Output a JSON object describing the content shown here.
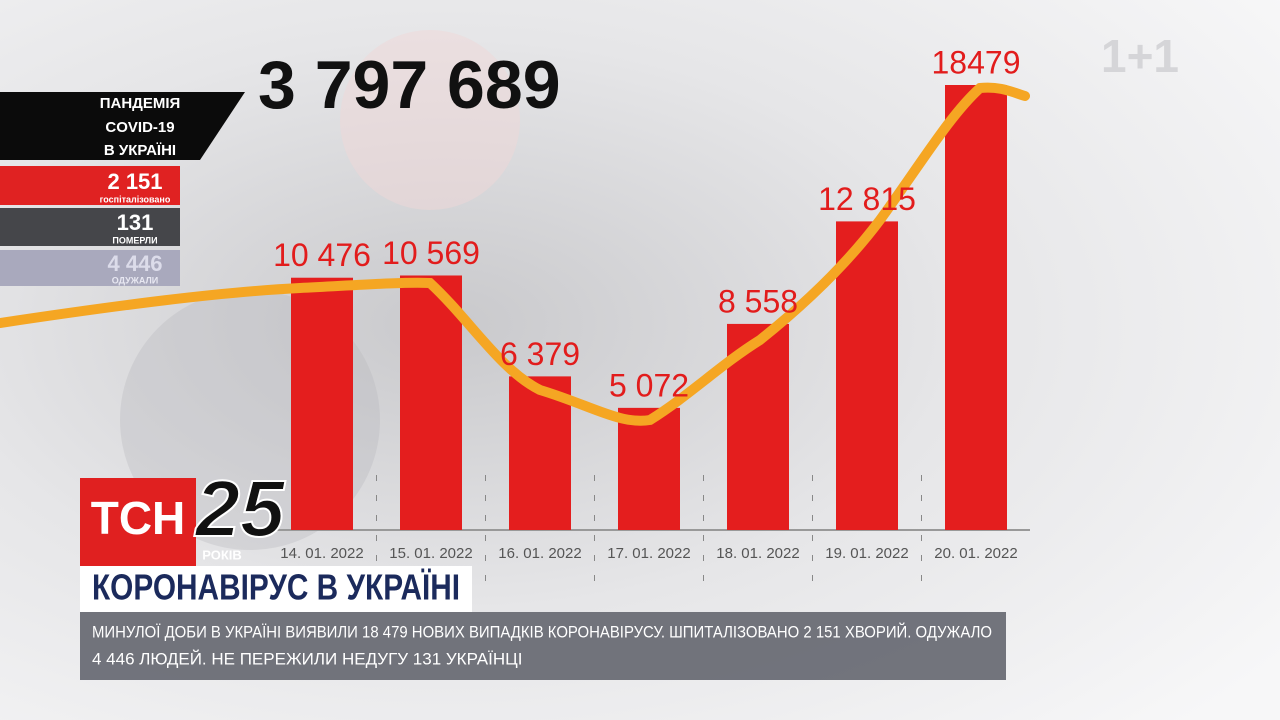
{
  "chart_data": {
    "type": "bar",
    "categories": [
      "14. 01. 2022",
      "15. 01. 2022",
      "16. 01. 2022",
      "17. 01. 2022",
      "18. 01. 2022",
      "19. 01. 2022",
      "20. 01. 2022"
    ],
    "values": [
      10476,
      10569,
      6379,
      5072,
      8558,
      12815,
      18479
    ],
    "value_labels": [
      "10 476",
      "10 569",
      "6 379",
      "5 072",
      "8 558",
      "12 815",
      "18479"
    ],
    "color": "#e41e1e"
  },
  "total_cases": "3 797 689",
  "stats_panel": {
    "title_lines": [
      "ПАНДЕМІЯ",
      "COVID-19",
      "В УКРАЇНІ"
    ],
    "items": [
      {
        "value": "2 151",
        "label": "госпіталізовано"
      },
      {
        "value": "131",
        "label": "ПОМЕРЛИ"
      },
      {
        "value": "4 446",
        "label": "ОДУЖАЛИ"
      }
    ]
  },
  "channel_logo": "1+1",
  "news_logo": {
    "name": "ТСН",
    "anniversary": "25",
    "anniversary_label": "РОКІВ"
  },
  "headline": "КОРОНАВІРУС В УКРАЇНІ",
  "ticker_lines": [
    "МИНУЛОЇ ДОБИ В УКРАЇНІ ВИЯВИЛИ 18 479 НОВИХ ВИПАДКІВ КОРОНАВІРУСУ. ШПИТАЛІЗОВАНО 2 151 ХВОРИЙ. ОДУЖАЛО",
    "4 446 ЛЮДЕЙ. НЕ ПЕРЕЖИЛИ НЕДУГУ 131 УКРАЇНЦІ"
  ]
}
